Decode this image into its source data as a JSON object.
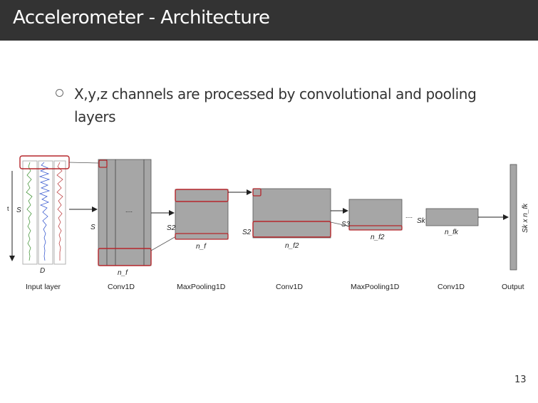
{
  "slide": {
    "title": "Accelerometer - Architecture",
    "bullet": "X,y,z channels are processed by convolutional and pooling layers",
    "page_number": "13"
  },
  "diagram": {
    "layers": [
      {
        "label": "Input layer",
        "dim_left": "S",
        "dim_bottom": "D",
        "side_t": "t"
      },
      {
        "label": "Conv1D",
        "dim_left": "S",
        "dim_bottom": "n_f",
        "dots": "...."
      },
      {
        "label": "MaxPooling1D",
        "dim_left": "S2",
        "dim_bottom": "n_f"
      },
      {
        "label": "Conv1D",
        "dim_left": "S2",
        "dim_bottom": "n_f2"
      },
      {
        "label": "MaxPooling1D",
        "dim_left": "S3",
        "dim_bottom": "n_f2"
      },
      {
        "label": "Conv1D",
        "dim_left": "Sk",
        "dim_bottom": "n_fk",
        "dots": "...."
      },
      {
        "label": "Output",
        "dim_side": "Sk x n_fk"
      }
    ],
    "colors": {
      "block_fill": "#a6a6a6",
      "block_edge": "#555555",
      "highlight": "#b5262b",
      "signal_x": "#4e9a43",
      "signal_y": "#3f5fd1",
      "signal_z": "#c0484a"
    }
  }
}
